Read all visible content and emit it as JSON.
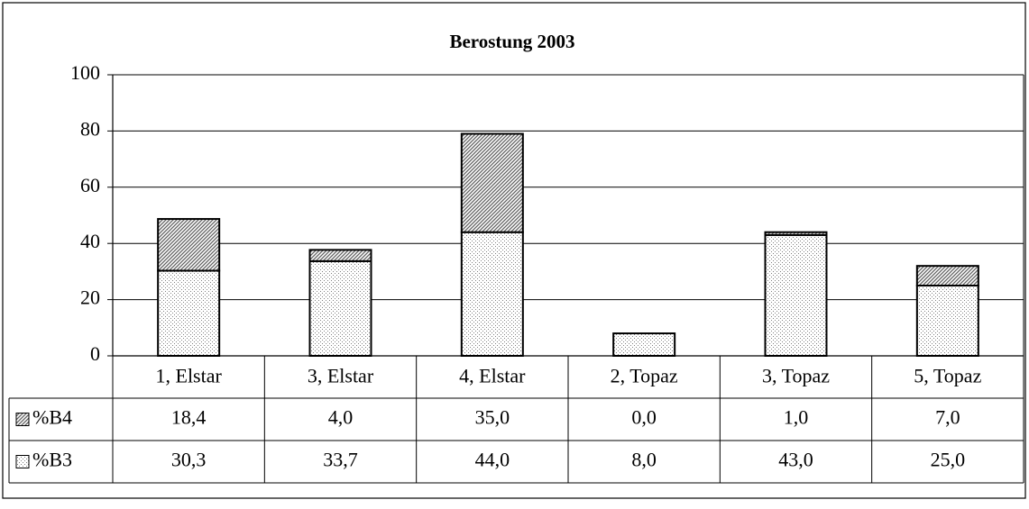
{
  "chart_data": {
    "type": "stacked_bar",
    "title": "Berostung 2003",
    "categories": [
      "1, Elstar",
      "3, Elstar",
      "4, Elstar",
      "2, Topaz",
      "3, Topaz",
      "5, Topaz"
    ],
    "series": [
      {
        "name": "%B3",
        "color": "#808080",
        "pattern": "dots",
        "values": [
          30.3,
          33.7,
          44.0,
          8.0,
          43.0,
          25.0
        ],
        "value_labels": [
          "30,3",
          "33,7",
          "44,0",
          "8,0",
          "43,0",
          "25,0"
        ]
      },
      {
        "name": "%B4",
        "color": "#606060",
        "pattern": "hatch",
        "values": [
          18.4,
          4.0,
          35.0,
          0.0,
          1.0,
          7.0
        ],
        "value_labels": [
          "18,4",
          "4,0",
          "35,0",
          "0,0",
          "1,0",
          "7,0"
        ]
      }
    ],
    "ylim": [
      0,
      100
    ],
    "yticks": [
      0,
      20,
      40,
      60,
      80,
      100
    ],
    "grid": true,
    "data_table": true
  }
}
